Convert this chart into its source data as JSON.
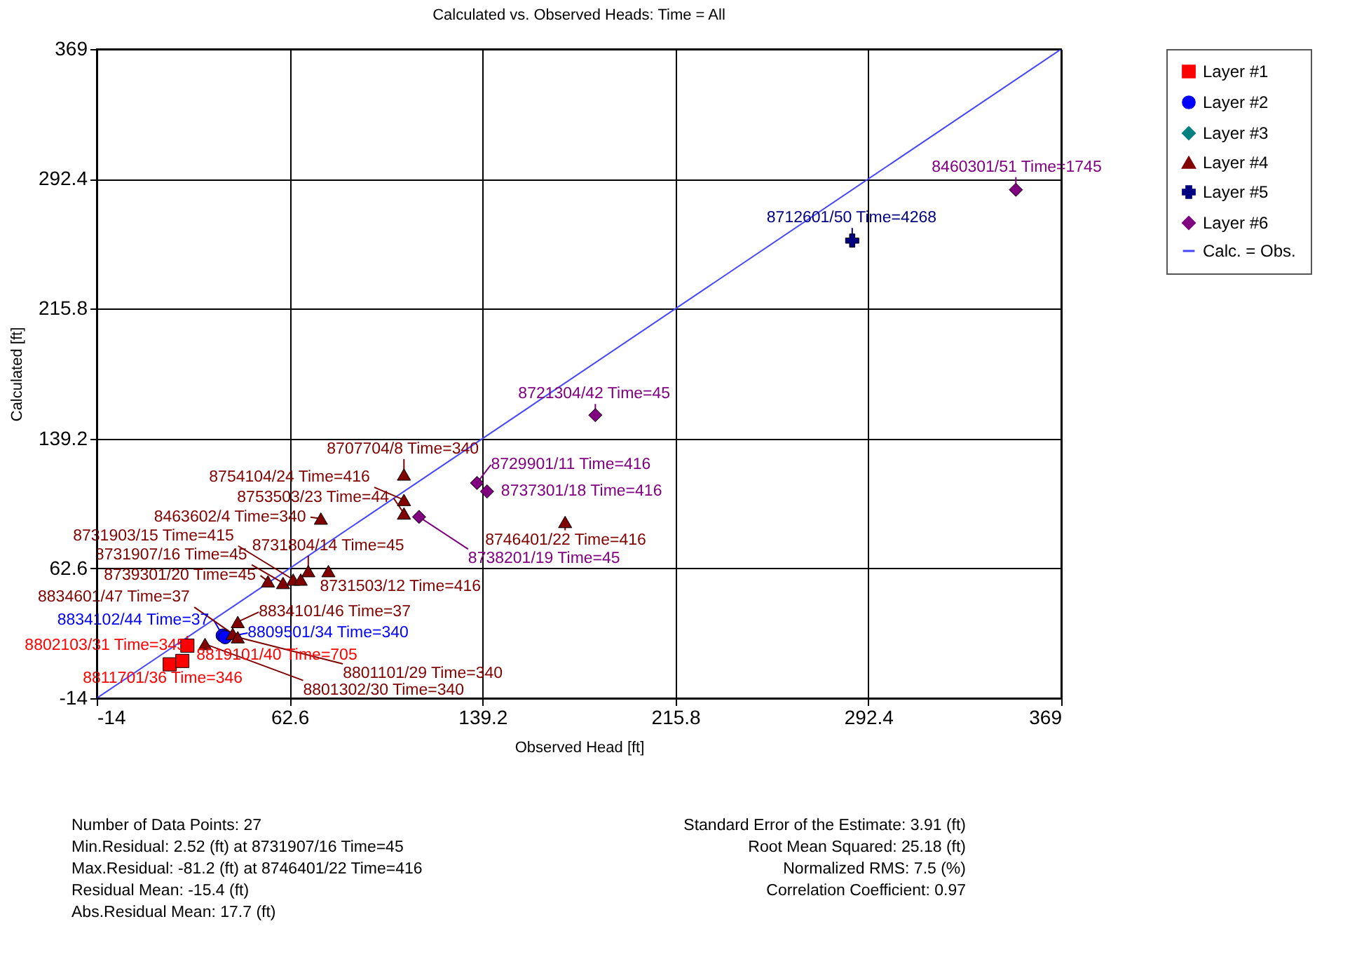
{
  "chart_data": {
    "type": "scatter",
    "title": "Calculated vs. Observed Heads: Time = All",
    "xlabel": "Observed Head [ft]",
    "ylabel": "Calculated [ft]",
    "xlim": [
      -14,
      369
    ],
    "ylim": [
      -14,
      369
    ],
    "xticks": [
      -14,
      62.6,
      139.2,
      215.8,
      292.4,
      369
    ],
    "yticks": [
      -14,
      62.6,
      139.2,
      215.8,
      292.4,
      369
    ],
    "grid": true,
    "legend": "top right",
    "series": [
      {
        "name": "Layer #1",
        "color": "#ff0000",
        "marker": "square",
        "x": [
          22,
          15,
          20
        ],
        "values": [
          17,
          6,
          8
        ]
      },
      {
        "name": "Layer #2",
        "color": "#0000ff",
        "marker": "circle",
        "x": [
          36,
          37
        ],
        "values": [
          23,
          22
        ]
      },
      {
        "name": "Layer #3",
        "color": "#008080",
        "marker": "diamond"
      },
      {
        "name": "Layer #4",
        "color": "#800000",
        "marker": "triangle",
        "x": [
          29,
          40,
          42,
          42,
          54,
          60,
          64,
          67,
          70,
          78,
          75,
          108,
          108,
          108,
          172
        ],
        "values": [
          18,
          24,
          31,
          22,
          55,
          54,
          56,
          56,
          61,
          61,
          92,
          118,
          103,
          95,
          90
        ]
      },
      {
        "name": "Layer #5",
        "color": "#000080",
        "marker": "cross",
        "x": [
          286
        ],
        "values": [
          256
        ]
      },
      {
        "name": "Layer #6",
        "color": "#800080",
        "marker": "diamond",
        "x": [
          137,
          141,
          114,
          184,
          351
        ],
        "values": [
          113,
          108,
          93,
          153,
          286
        ]
      },
      {
        "name": "Calc. = Obs.",
        "type": "line",
        "color": "#4646ff",
        "x": [
          -14,
          369
        ],
        "values": [
          -14,
          369
        ]
      }
    ],
    "annotations": [
      {
        "text": "8802103/31 Time=345",
        "x": 22,
        "y": 17
      },
      {
        "text": "8811701/36 Time=346",
        "x": 15,
        "y": 6
      },
      {
        "text": "8819101/40 Time=705",
        "x": 20,
        "y": 8
      },
      {
        "text": "8834102/44 Time=37",
        "x": 36,
        "y": 23
      },
      {
        "text": "8809501/34 Time=340",
        "x": 37,
        "y": 22
      },
      {
        "text": "8801302/30 Time=340",
        "x": 29,
        "y": 18
      },
      {
        "text": "8834601/47 Time=37",
        "x": 40,
        "y": 24
      },
      {
        "text": "8834101/46 Time=37",
        "x": 42,
        "y": 31
      },
      {
        "text": "8801101/29 Time=340",
        "x": 42,
        "y": 22
      },
      {
        "text": "8739301/20 Time=45",
        "x": 54,
        "y": 55
      },
      {
        "text": "8731907/16 Time=45",
        "x": 60,
        "y": 54
      },
      {
        "text": "8731903/15 Time=415",
        "x": 64,
        "y": 56
      },
      {
        "text": "8731804/14 Time=45",
        "x": 70,
        "y": 61
      },
      {
        "text": "8731503/12 Time=416",
        "x": 78,
        "y": 61
      },
      {
        "text": "8463602/4 Time=340",
        "x": 75,
        "y": 92
      },
      {
        "text": "8754104/24 Time=416",
        "x": 108,
        "y": 103
      },
      {
        "text": "8753503/23 Time=44",
        "x": 108,
        "y": 95
      },
      {
        "text": "8707704/8 Time=340",
        "x": 108,
        "y": 118
      },
      {
        "text": "8746401/22 Time=416",
        "x": 172,
        "y": 90
      },
      {
        "text": "8729901/11 Time=416",
        "x": 137,
        "y": 113
      },
      {
        "text": "8737301/18 Time=416",
        "x": 141,
        "y": 108
      },
      {
        "text": "8738201/19 Time=45",
        "x": 114,
        "y": 93
      },
      {
        "text": "8721304/42 Time=45",
        "x": 184,
        "y": 153
      },
      {
        "text": "8712601/50 Time=4268",
        "x": 286,
        "y": 256
      },
      {
        "text": "8460301/51 Time=1745",
        "x": 351,
        "y": 286
      },
      "Number of Data Points: 27",
      "Min.Residual: 2.52 (ft) at 8731907/16 Time=45",
      "Max.Residual: -81.2 (ft) at 8746401/22 Time=416",
      "Residual Mean: -15.4 (ft)",
      "Abs.Residual Mean: 17.7 (ft)",
      "Standard Error of the Estimate: 3.91 (ft)",
      "Root Mean Squared: 25.18 (ft)",
      "Normalized RMS: 7.5 (%)",
      "Correlation Coefficient: 0.97"
    ]
  }
}
